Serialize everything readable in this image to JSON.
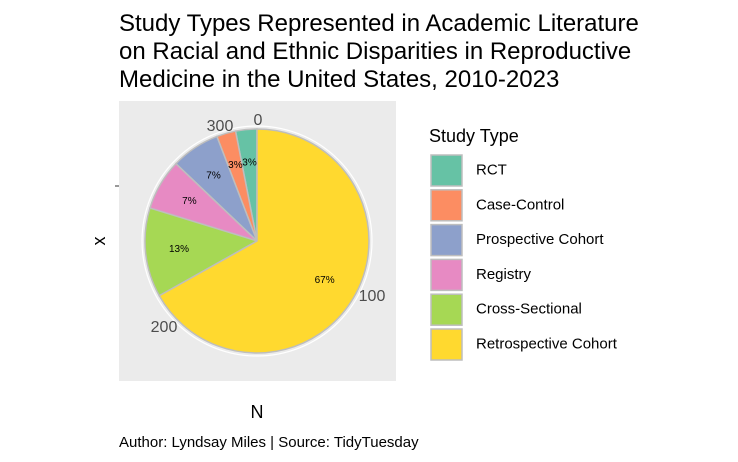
{
  "chart_data": {
    "type": "pie",
    "title_lines": [
      "Study Types Represented in Academic Literature",
      "on Racial and Ethnic Disparities in Reproductive",
      "Medicine in the United States, 2010-2023"
    ],
    "xlabel": "N",
    "ylabel": "x",
    "radial_ticks": [
      "0",
      "100",
      "200",
      "300"
    ],
    "radial_range": [
      0,
      326
    ],
    "legend_title": "Study Type",
    "legend_position": "right",
    "caption": "Author: Lyndsay Miles | Source: TidyTuesday",
    "slices": [
      {
        "label": "RCT",
        "value": 10,
        "percent_label": "3%",
        "color": "#66C2A5"
      },
      {
        "label": "Case-Control",
        "value": 9,
        "percent_label": "3%",
        "color": "#FC8D62"
      },
      {
        "label": "Prospective Cohort",
        "value": 23,
        "percent_label": "7%",
        "color": "#8DA0CB"
      },
      {
        "label": "Registry",
        "value": 24,
        "percent_label": "7%",
        "color": "#E78AC3"
      },
      {
        "label": "Cross-Sectional",
        "value": 42,
        "percent_label": "13%",
        "color": "#A6D854"
      },
      {
        "label": "Retrospective Cohort",
        "value": 218,
        "percent_label": "67%",
        "color": "#FFD92F"
      }
    ],
    "panel_background": "#EBEBEB",
    "grid_color": "#FFFFFF",
    "slice_border": "#BEBEBE"
  }
}
